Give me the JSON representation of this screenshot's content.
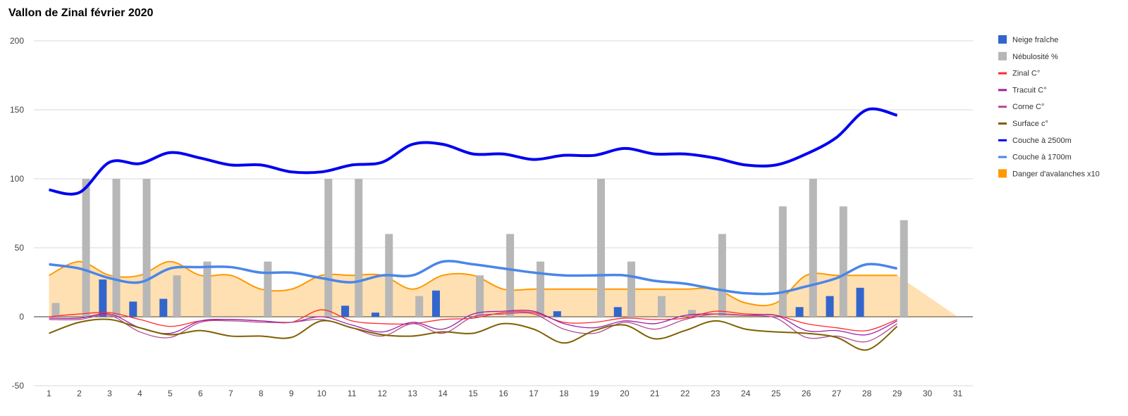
{
  "chart_data": {
    "type": "bar",
    "title": "Vallon de Zinal février 2020",
    "xlabel": "",
    "ylabel": "",
    "ylim": [
      -50,
      200
    ],
    "yticks": [
      -50,
      0,
      50,
      100,
      150,
      200
    ],
    "x": [
      "1",
      "2",
      "3",
      "4",
      "5",
      "6",
      "7",
      "8",
      "9",
      "10",
      "11",
      "12",
      "13",
      "14",
      "15",
      "16",
      "17",
      "18",
      "19",
      "20",
      "21",
      "22",
      "23",
      "24",
      "25",
      "26",
      "27",
      "28",
      "29",
      "30",
      "31"
    ],
    "grid": true,
    "legend_position": "right",
    "series": [
      {
        "name": "Neige fraîche",
        "kind": "bar",
        "color": "#3366cc",
        "values": [
          0,
          0,
          27,
          11,
          13,
          0,
          0,
          0,
          0,
          0,
          8,
          3,
          0,
          19,
          0,
          0,
          0,
          4,
          0,
          7,
          0,
          0,
          0,
          0,
          0,
          7,
          15,
          21,
          0,
          null,
          null
        ]
      },
      {
        "name": "Nébulosité %",
        "kind": "bar",
        "color": "#b7b7b7",
        "values": [
          10,
          100,
          100,
          100,
          30,
          40,
          0,
          40,
          0,
          100,
          100,
          60,
          15,
          0,
          30,
          60,
          40,
          0,
          100,
          40,
          15,
          5,
          60,
          0,
          80,
          100,
          80,
          0,
          70,
          null,
          null
        ]
      },
      {
        "name": "Zinal C°",
        "kind": "line",
        "color": "#ff2a2a",
        "values": [
          0,
          2,
          3,
          -2,
          -7,
          -3,
          -2,
          -3,
          -4,
          5,
          -3,
          -5,
          -5,
          -2,
          -1,
          3,
          3,
          -4,
          -4,
          -1,
          -2,
          -1,
          4,
          2,
          1,
          -5,
          -8,
          -10,
          -2,
          null,
          null
        ]
      },
      {
        "name": "Tracuit C°",
        "kind": "line",
        "color": "#9c1fa5",
        "values": [
          -1,
          -1,
          2,
          -8,
          -12,
          -3,
          -2,
          -3,
          -4,
          0,
          -6,
          -11,
          -4,
          -9,
          2,
          4,
          4,
          -5,
          -8,
          -3,
          -5,
          1,
          2,
          1,
          1,
          -10,
          -10,
          -13,
          -3,
          null,
          null
        ]
      },
      {
        "name": "Corne C°",
        "kind": "line",
        "color": "#b04e8e",
        "values": [
          -2,
          -2,
          1,
          -11,
          -15,
          -4,
          -3,
          -4,
          -4,
          -2,
          -8,
          -14,
          -5,
          -12,
          0,
          2,
          2,
          -9,
          -12,
          -4,
          -9,
          -2,
          2,
          1,
          -1,
          -15,
          -14,
          -18,
          -5,
          null,
          null
        ]
      },
      {
        "name": "Surface c°",
        "kind": "line",
        "color": "#7f6000",
        "values": [
          -12,
          -4,
          -2,
          -8,
          -13,
          -10,
          -14,
          -14,
          -15,
          -3,
          -8,
          -13,
          -14,
          -11,
          -12,
          -5,
          -9,
          -19,
          -10,
          -6,
          -16,
          -10,
          -3,
          -9,
          -11,
          -12,
          -15,
          -24,
          -7,
          null,
          null
        ]
      },
      {
        "name": "Couche à 2500m",
        "kind": "line",
        "color": "#0000f0",
        "values": [
          92,
          90,
          112,
          111,
          119,
          115,
          110,
          110,
          105,
          105,
          110,
          112,
          125,
          125,
          118,
          118,
          114,
          117,
          117,
          122,
          118,
          118,
          115,
          110,
          110,
          118,
          130,
          150,
          146,
          null,
          null
        ]
      },
      {
        "name": "Couche à 1700m",
        "kind": "line",
        "color": "#4a86e8",
        "values": [
          38,
          35,
          28,
          25,
          35,
          36,
          36,
          32,
          32,
          28,
          25,
          30,
          30,
          40,
          38,
          35,
          32,
          30,
          30,
          30,
          26,
          24,
          20,
          17,
          17,
          22,
          28,
          38,
          35,
          null,
          null
        ]
      },
      {
        "name": "Danger d'avalanches x10",
        "kind": "area",
        "color": "#ff9900",
        "values": [
          30,
          40,
          30,
          30,
          40,
          30,
          30,
          20,
          20,
          30,
          30,
          30,
          20,
          30,
          30,
          20,
          20,
          20,
          20,
          20,
          20,
          20,
          20,
          10,
          10,
          30,
          30,
          30,
          30,
          15,
          0
        ]
      }
    ]
  }
}
